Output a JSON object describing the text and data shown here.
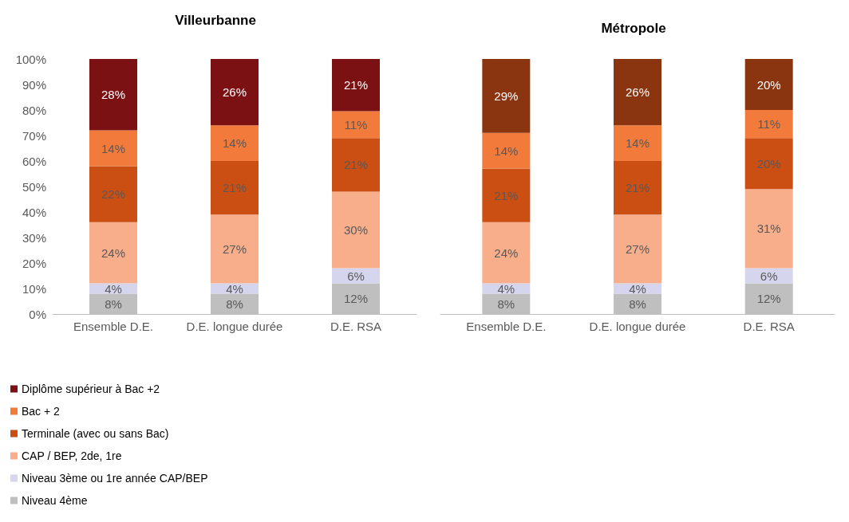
{
  "chart_data": [
    {
      "type": "bar",
      "title": "Villeurbanne",
      "stacked": true,
      "categories": [
        "Ensemble D.E.",
        "D.E. longue durée",
        "D.E. RSA"
      ],
      "ylim": [
        0,
        100
      ],
      "yticks": [
        {
          "value": 0,
          "label": "0%"
        },
        {
          "value": 10,
          "label": "10%"
        },
        {
          "value": 20,
          "label": "20%"
        },
        {
          "value": 30,
          "label": "30%"
        },
        {
          "value": 40,
          "label": "40%"
        },
        {
          "value": 50,
          "label": "50%"
        },
        {
          "value": 60,
          "label": "60%"
        },
        {
          "value": 70,
          "label": "70%"
        },
        {
          "value": 80,
          "label": "80%"
        },
        {
          "value": 90,
          "label": "90%"
        },
        {
          "value": 100,
          "label": "100%"
        }
      ],
      "grid": false,
      "legend": "bottom left",
      "series": [
        {
          "name": "Niveau 4ème",
          "color": "#bfbfbf",
          "values": [
            8,
            8,
            12
          ],
          "value_labels": [
            "8%",
            "8%",
            "12%"
          ]
        },
        {
          "name": "Niveau 3ème ou 1re année CAP/BEP",
          "color": "#d5d5ee",
          "values": [
            4,
            4,
            6
          ],
          "value_labels": [
            "4%",
            "4%",
            "6%"
          ]
        },
        {
          "name": "CAP / BEP, 2de, 1re",
          "color": "#f8ae8b",
          "values": [
            24,
            27,
            30
          ],
          "value_labels": [
            "24%",
            "27%",
            "30%"
          ]
        },
        {
          "name": "Terminale (avec ou sans Bac)",
          "color": "#cb4e13",
          "values": [
            22,
            21,
            21
          ],
          "value_labels": [
            "22%",
            "21%",
            "21%"
          ]
        },
        {
          "name": "Bac + 2",
          "color": "#f27a3b",
          "values": [
            14,
            14,
            10.5
          ],
          "value_labels": [
            "14%",
            "14%",
            "11%"
          ]
        },
        {
          "name": "Diplôme supérieur à Bac +2",
          "color": "#7c1114",
          "values": [
            28,
            26,
            20.5
          ],
          "value_labels": [
            "28%",
            "26%",
            "21%"
          ]
        }
      ]
    },
    {
      "type": "bar",
      "title": "Métropole",
      "stacked": true,
      "categories": [
        "Ensemble D.E.",
        "D.E. longue durée",
        "D.E. RSA"
      ],
      "ylim": [
        0,
        100
      ],
      "tick_labels": "x",
      "grid": false,
      "legend": false,
      "series": [
        {
          "color": "#bfbfbf",
          "values": [
            8,
            8,
            12
          ],
          "value_labels": [
            "8%",
            "8%",
            "12%"
          ]
        },
        {
          "color": "#d5d5ee",
          "values": [
            4,
            4,
            6
          ],
          "value_labels": [
            "4%",
            "4%",
            "6%"
          ]
        },
        {
          "color": "#f8ae8b",
          "values": [
            24,
            27,
            31
          ],
          "value_labels": [
            "24%",
            "27%",
            "31%"
          ]
        },
        {
          "color": "#cb4e13",
          "values": [
            21,
            21,
            20
          ],
          "value_labels": [
            "21%",
            "21%",
            "20%"
          ]
        },
        {
          "color": "#f27a3b",
          "values": [
            14,
            14,
            11
          ],
          "value_labels": [
            "14%",
            "14%",
            "11%"
          ]
        },
        {
          "color": "#8b3410",
          "values": [
            29,
            26,
            20
          ],
          "value_labels": [
            "29%",
            "26%",
            "20%"
          ]
        }
      ]
    }
  ]
}
